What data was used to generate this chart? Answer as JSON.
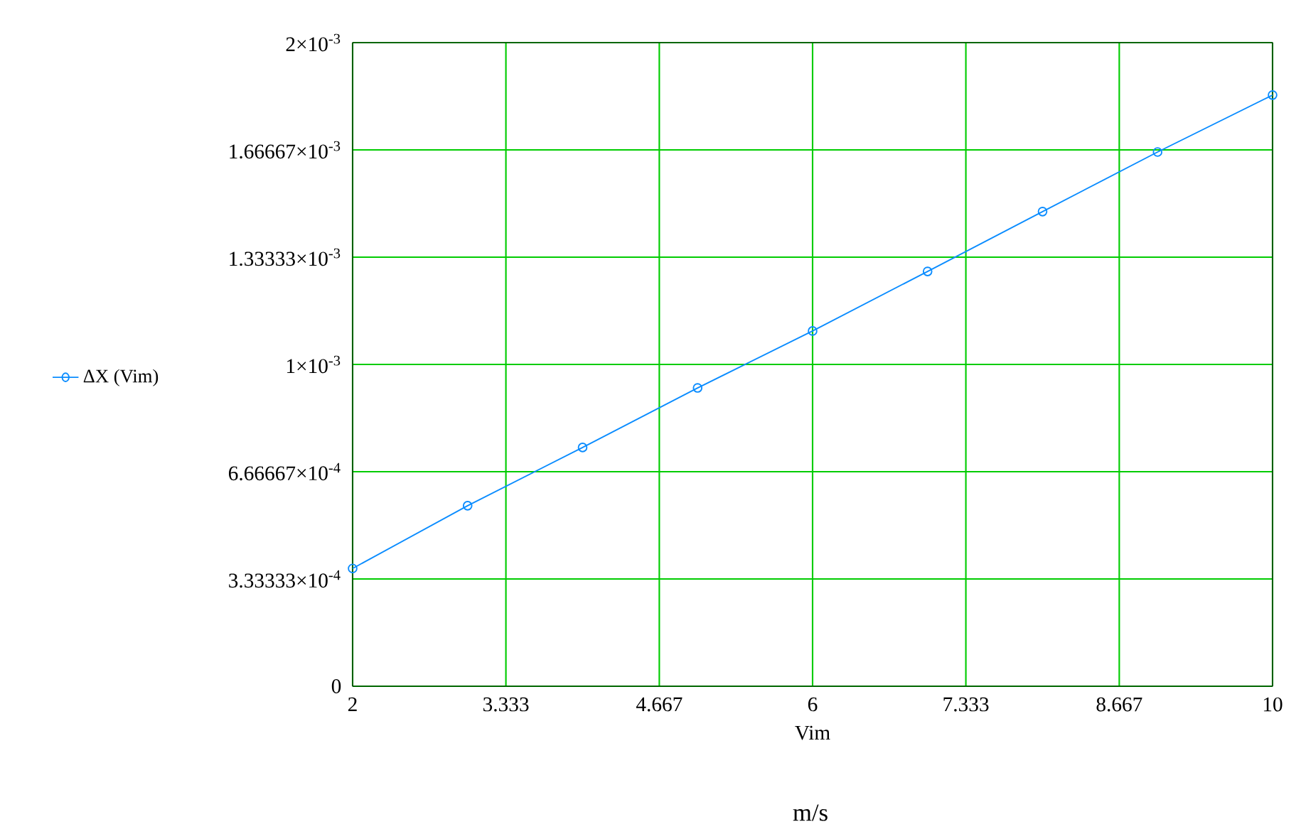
{
  "chart_data": {
    "type": "line",
    "xlabel": "Vim",
    "annotations": [
      "m/s"
    ],
    "x": [
      2,
      3,
      4,
      5,
      6,
      7,
      8,
      9,
      10
    ],
    "series": [
      {
        "name": "ΔX (Vim)",
        "color": "#0a8cff",
        "values": [
          0.000366,
          0.000561,
          0.000742,
          0.000927,
          0.001104,
          0.001289,
          0.001475,
          0.00166,
          0.001837
        ]
      }
    ],
    "xlim": [
      2,
      10
    ],
    "xticks": [
      2,
      3.333,
      4.667,
      6,
      7.333,
      8.667,
      10
    ],
    "ylim": [
      0,
      0.002
    ],
    "yticks": [
      0,
      {
        "value": 0.000333333,
        "label": "3.33333×10$^{-4}$"
      },
      {
        "value": 0.000666667,
        "label": "6.66667×10$^{-4}$"
      },
      {
        "value": 0.001,
        "label": "1×10$^{-3}$"
      },
      {
        "value": 0.001333333,
        "label": "1.33333×10$^{-3}$"
      },
      {
        "value": 0.001666667,
        "label": "1.66667×10$^{-3}$"
      },
      {
        "value": 0.002,
        "label": "2×10$^{-3}$"
      }
    ],
    "grid": true,
    "legend": "left",
    "marker": "circle",
    "line_style": "solid"
  }
}
